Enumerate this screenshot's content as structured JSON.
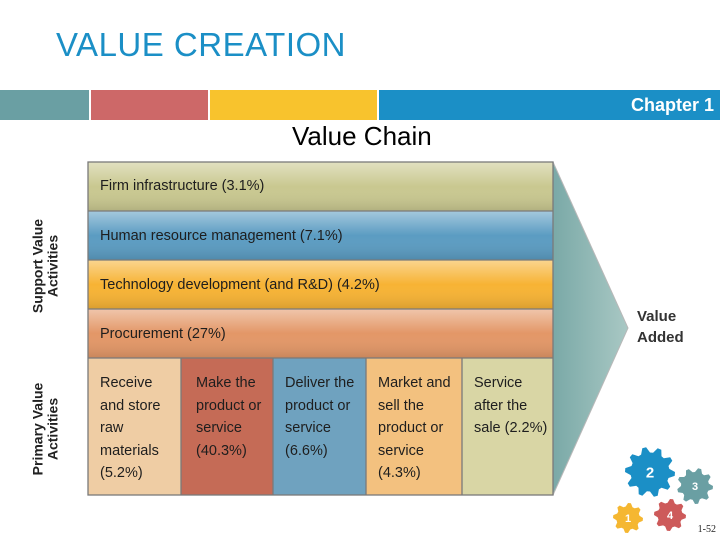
{
  "header": {
    "title": "VALUE CREATION",
    "chapter": "Chapter 1"
  },
  "diagram": {
    "title": "Value Chain",
    "support_label": "Support Value Activities",
    "primary_label": "Primary Value Activities",
    "value_added": "Value Added",
    "support_rows": [
      {
        "label": "Firm infrastructure (3.1%)",
        "color": "#c9c890"
      },
      {
        "label": "Human resource management (7.1%)",
        "color": "#5b9cc2"
      },
      {
        "label": "Technology development (and R&D) (4.2%)",
        "color": "#f7b334"
      },
      {
        "label": "Procurement (27%)",
        "color": "#e39767"
      }
    ],
    "primary_cells": [
      {
        "lines": [
          "Receive",
          "and store",
          "raw",
          "materials",
          "(5.2%)"
        ],
        "color": "#efcda4"
      },
      {
        "lines": [
          "Make the",
          "product or",
          "service",
          "(40.3%)"
        ],
        "color": "#c56b56"
      },
      {
        "lines": [
          "Deliver the",
          "product or",
          "service",
          "(6.6%)"
        ],
        "color": "#6fa2bf"
      },
      {
        "lines": [
          "Market and",
          "sell the",
          "product or",
          "service",
          "(4.3%)"
        ],
        "color": "#f3c17f"
      },
      {
        "lines": [
          "Service",
          "after the",
          "sale (2.2%)"
        ],
        "color": "#d9d6a5"
      }
    ]
  },
  "gears": [
    {
      "number": "1",
      "color": "#f5b731"
    },
    {
      "number": "2",
      "color": "#1b8fc6"
    },
    {
      "number": "3",
      "color": "#6a9fa3"
    },
    {
      "number": "4",
      "color": "#cd5a5a"
    }
  ],
  "footer": {
    "page": "1-52"
  }
}
